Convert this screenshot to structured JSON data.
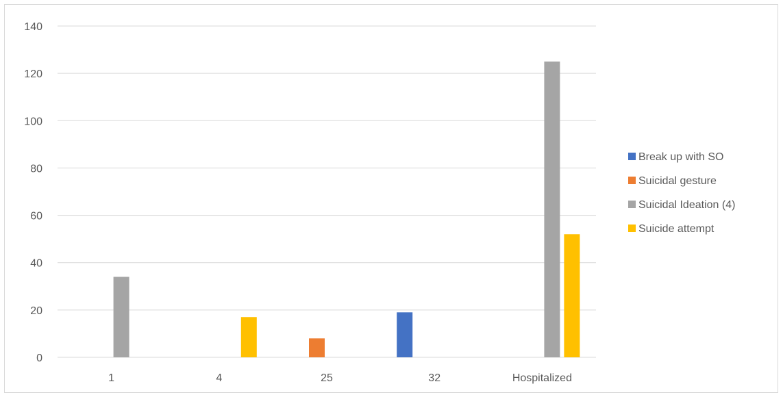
{
  "chart_data": {
    "type": "bar",
    "categories": [
      "1",
      "4",
      "25",
      "32",
      "Hospitalized"
    ],
    "series": [
      {
        "name": "Break up with SO",
        "color": "#4472C4",
        "values": [
          null,
          null,
          null,
          19,
          null
        ]
      },
      {
        "name": "Suicidal gesture",
        "color": "#ED7D31",
        "values": [
          null,
          null,
          8,
          null,
          null
        ]
      },
      {
        "name": "Suicidal Ideation (4)",
        "color": "#A5A5A5",
        "values": [
          34,
          null,
          null,
          null,
          125
        ]
      },
      {
        "name": "Suicide attempt",
        "color": "#FFC000",
        "values": [
          null,
          17,
          null,
          null,
          52
        ]
      }
    ],
    "ylim": [
      0,
      140
    ],
    "yticks": [
      0,
      20,
      40,
      60,
      80,
      100,
      120,
      140
    ],
    "grid": true,
    "legend": "right"
  }
}
